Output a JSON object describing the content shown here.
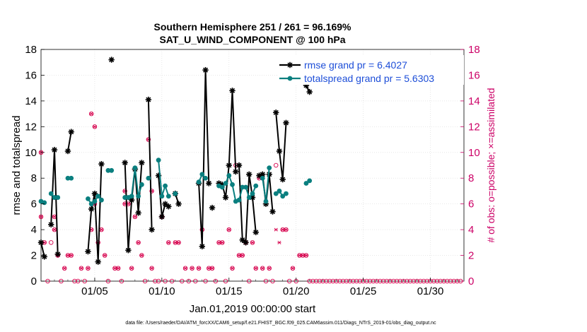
{
  "chart_data": {
    "type": "line",
    "title_line1": "Southern Hemisphere 251 / 261 = 96.169%",
    "title_line2": "SAT_U_WIND_COMPONENT @ 100 hPa",
    "xlabel": "Jan.01,2019 00:00:00 start",
    "ylabel_left": "rmse and totalspread",
    "ylabel_right": "# of obs: o=possible; ×=assimilated",
    "footer": "data file: /Users/raeder/DAI/ATM_forcXX/CAM6_setup/f.e21.FHIST_BGC.f09_025.CAM6assim.011/Diags_NTrS_2019-01/obs_diag_output.nc",
    "xlim": [
      1,
      32.5
    ],
    "ylim_left": [
      0,
      18
    ],
    "ylim_right": [
      0,
      18
    ],
    "x_ticks": [
      {
        "value": 5,
        "label": "01/05"
      },
      {
        "value": 10,
        "label": "01/10"
      },
      {
        "value": 15,
        "label": "01/15"
      },
      {
        "value": 20,
        "label": "01/20"
      },
      {
        "value": 25,
        "label": "01/25"
      },
      {
        "value": 30,
        "label": "01/30"
      }
    ],
    "y_ticks_left": [
      "0",
      "2",
      "4",
      "6",
      "8",
      "10",
      "12",
      "14",
      "16",
      "18"
    ],
    "y_ticks_right": [
      "0",
      "2",
      "4",
      "6",
      "8",
      "10",
      "12",
      "14",
      "16",
      "18"
    ],
    "grid": true,
    "legend_placement": "top-right",
    "colors": {
      "rmse": "#000000",
      "spread": "#0a7f7f",
      "obs": "#d6004c",
      "axis_right": "#cc0066",
      "legend_text": "#1d4ed8"
    },
    "series": [
      {
        "name": "rmse grand pr = 6.4027",
        "key": "rmse",
        "segments": [
          [
            [
              1.0,
              3.0
            ],
            [
              1.25,
              1.9
            ]
          ],
          [
            [
              1.75,
              4.4
            ],
            [
              2.0,
              10.2
            ],
            [
              2.25,
              2.1
            ]
          ],
          [
            [
              3.0,
              10.1
            ],
            [
              3.25,
              11.6
            ]
          ],
          [
            [
              4.5,
              2.3
            ],
            [
              4.75,
              5.6
            ],
            [
              5.0,
              6.8
            ],
            [
              5.25,
              1.5
            ],
            [
              5.5,
              9.1
            ]
          ],
          [
            [
              6.25,
              17.2
            ]
          ],
          [
            [
              7.25,
              9.2
            ],
            [
              7.5,
              2.4
            ],
            [
              7.75,
              6.3
            ],
            [
              8.0,
              8.7
            ],
            [
              8.25,
              5.3
            ],
            [
              8.5,
              9.2
            ]
          ],
          [
            [
              9.0,
              14.1
            ],
            [
              9.25,
              4.0
            ]
          ],
          [
            [
              9.75,
              8.2
            ],
            [
              10.0,
              5.0
            ],
            [
              10.25,
              6.0
            ],
            [
              10.5,
              5.8
            ]
          ],
          [
            [
              11.0,
              6.8
            ],
            [
              11.25,
              6.0
            ]
          ],
          [
            [
              12.75,
              7.6
            ],
            [
              13.0,
              2.7
            ],
            [
              13.25,
              16.4
            ],
            [
              13.5,
              7.6
            ]
          ],
          [
            [
              13.75,
              5.7
            ]
          ],
          [
            [
              14.25,
              7.6
            ],
            [
              14.5,
              7.5
            ],
            [
              14.75,
              6.5
            ],
            [
              15.0,
              9.0
            ],
            [
              15.25,
              14.8
            ],
            [
              15.5,
              8.5
            ]
          ],
          [
            [
              15.75,
              9.0
            ],
            [
              16.0,
              3.2
            ],
            [
              16.25,
              3.0
            ],
            [
              16.5,
              8.3
            ],
            [
              16.75,
              6.5
            ],
            [
              17.0,
              3.8
            ]
          ],
          [
            [
              17.25,
              8.2
            ],
            [
              17.5,
              8.3
            ],
            [
              17.75,
              6.0
            ],
            [
              18.0,
              8.3
            ],
            [
              18.25,
              5.4
            ]
          ],
          [
            [
              18.5,
              13.1
            ],
            [
              18.75,
              10.1
            ],
            [
              19.0,
              7.9
            ],
            [
              19.25,
              12.3
            ]
          ],
          [
            [
              20.75,
              15.2
            ],
            [
              21.0,
              14.7
            ]
          ]
        ]
      },
      {
        "name": "totalspread grand pr = 5.6303",
        "key": "spread",
        "segments": [
          [
            [
              1.0,
              6.2
            ],
            [
              1.25,
              6.1
            ]
          ],
          [
            [
              1.75,
              6.8
            ],
            [
              2.0,
              6.5
            ],
            [
              2.25,
              6.5
            ]
          ],
          [
            [
              3.0,
              8.0
            ],
            [
              3.25,
              8.0
            ]
          ],
          [
            [
              4.5,
              6.4
            ],
            [
              4.75,
              6.0
            ],
            [
              5.0,
              6.2
            ],
            [
              5.25,
              6.6
            ],
            [
              5.5,
              6.3
            ]
          ],
          [
            [
              6.0,
              8.6
            ],
            [
              6.25,
              8.6
            ]
          ],
          [
            [
              7.25,
              6.5
            ],
            [
              7.5,
              6.5
            ],
            [
              7.75,
              6.6
            ],
            [
              8.0,
              8.8
            ],
            [
              8.25,
              6.6
            ],
            [
              8.5,
              7.5
            ]
          ],
          [
            [
              9.0,
              8.0
            ]
          ],
          [
            [
              9.75,
              9.4
            ],
            [
              10.0,
              6.6
            ],
            [
              10.25,
              7.4
            ],
            [
              10.5,
              6.6
            ]
          ],
          [
            [
              11.0,
              6.8
            ]
          ],
          [
            [
              12.75,
              7.7
            ],
            [
              13.0,
              8.3
            ],
            [
              13.25,
              8.0
            ]
          ],
          [
            [
              14.25,
              7.4
            ],
            [
              14.5,
              7.3
            ],
            [
              14.75,
              7.6
            ],
            [
              15.0,
              8.2
            ],
            [
              15.25,
              7.5
            ],
            [
              15.5,
              6.2
            ]
          ],
          [
            [
              15.75,
              6.3
            ],
            [
              16.0,
              7.3
            ],
            [
              16.25,
              7.3
            ],
            [
              16.5,
              6.5
            ],
            [
              16.75,
              6.8
            ],
            [
              17.0,
              7.4
            ]
          ],
          [
            [
              17.5,
              8.0
            ],
            [
              17.75,
              6.2
            ],
            [
              18.0,
              8.8
            ]
          ],
          [
            [
              18.5,
              6.8
            ],
            [
              18.75,
              7.0
            ],
            [
              19.0,
              6.6
            ]
          ],
          [
            [
              19.25,
              6.8
            ]
          ],
          [
            [
              20.75,
              7.6
            ],
            [
              21.0,
              7.8
            ]
          ]
        ]
      }
    ],
    "obs_possible": [
      [
        1.0,
        10
      ],
      [
        1.0,
        5
      ],
      [
        1.25,
        3
      ],
      [
        1.5,
        0
      ],
      [
        1.75,
        3
      ],
      [
        2.0,
        5
      ],
      [
        2.0,
        4
      ],
      [
        2.25,
        2
      ],
      [
        2.5,
        0
      ],
      [
        2.75,
        1
      ],
      [
        3.0,
        2
      ],
      [
        3.25,
        2
      ],
      [
        3.5,
        0
      ],
      [
        3.75,
        0
      ],
      [
        4.0,
        1
      ],
      [
        4.25,
        0
      ],
      [
        4.5,
        1
      ],
      [
        4.75,
        4
      ],
      [
        4.75,
        13
      ],
      [
        5.0,
        12
      ],
      [
        5.0,
        6
      ],
      [
        5.25,
        3
      ],
      [
        5.5,
        4
      ],
      [
        5.75,
        2
      ],
      [
        6.0,
        0
      ],
      [
        6.5,
        1
      ],
      [
        6.75,
        1
      ],
      [
        7.0,
        0
      ],
      [
        7.25,
        6
      ],
      [
        7.25,
        7
      ],
      [
        7.5,
        6
      ],
      [
        7.75,
        1
      ],
      [
        8.0,
        5
      ],
      [
        8.25,
        3
      ],
      [
        8.5,
        2
      ],
      [
        8.75,
        0
      ],
      [
        9.0,
        11
      ],
      [
        9.25,
        7
      ],
      [
        9.25,
        1
      ],
      [
        9.5,
        0
      ],
      [
        9.75,
        0
      ],
      [
        10.0,
        5
      ],
      [
        10.25,
        0
      ],
      [
        10.5,
        3
      ],
      [
        10.75,
        0
      ],
      [
        11.0,
        3
      ],
      [
        11.25,
        3
      ],
      [
        11.5,
        0
      ],
      [
        11.75,
        1
      ],
      [
        12.0,
        0
      ],
      [
        12.25,
        1
      ],
      [
        12.5,
        0
      ],
      [
        12.75,
        1
      ],
      [
        13.0,
        4
      ],
      [
        13.25,
        0
      ],
      [
        13.5,
        1
      ],
      [
        13.75,
        1
      ],
      [
        14.0,
        0
      ],
      [
        14.25,
        3
      ],
      [
        14.5,
        3
      ],
      [
        14.75,
        0
      ],
      [
        15.0,
        4
      ],
      [
        15.25,
        1
      ],
      [
        15.5,
        9
      ],
      [
        15.75,
        2
      ],
      [
        16.0,
        2
      ],
      [
        16.25,
        3
      ],
      [
        16.5,
        0
      ],
      [
        16.75,
        3
      ],
      [
        17.0,
        1
      ],
      [
        17.25,
        8
      ],
      [
        17.5,
        1
      ],
      [
        17.75,
        0
      ],
      [
        18.0,
        1
      ],
      [
        18.25,
        0
      ],
      [
        18.5,
        9
      ],
      [
        18.75,
        7
      ],
      [
        19.0,
        4
      ],
      [
        19.25,
        4
      ],
      [
        19.5,
        0
      ],
      [
        19.75,
        1
      ],
      [
        20.0,
        0
      ],
      [
        20.25,
        2
      ],
      [
        20.5,
        2
      ],
      [
        20.75,
        2
      ],
      [
        21.0,
        0
      ],
      [
        21.25,
        0
      ],
      [
        21.5,
        0
      ],
      [
        21.75,
        0
      ],
      [
        22.0,
        0
      ],
      [
        22.25,
        0
      ],
      [
        22.5,
        0
      ],
      [
        22.75,
        0
      ],
      [
        23.0,
        0
      ],
      [
        23.25,
        0
      ],
      [
        23.5,
        0
      ],
      [
        23.75,
        0
      ],
      [
        24.0,
        0
      ],
      [
        24.25,
        0
      ],
      [
        24.5,
        0
      ],
      [
        24.75,
        0
      ],
      [
        25.0,
        0
      ],
      [
        25.25,
        0
      ],
      [
        25.5,
        0
      ],
      [
        25.75,
        0
      ],
      [
        26.0,
        0
      ],
      [
        26.25,
        0
      ],
      [
        26.5,
        0
      ],
      [
        26.75,
        0
      ],
      [
        27.0,
        0
      ],
      [
        27.25,
        0
      ],
      [
        27.5,
        0
      ],
      [
        27.75,
        0
      ],
      [
        28.0,
        0
      ],
      [
        28.25,
        0
      ],
      [
        28.5,
        0
      ],
      [
        28.75,
        0
      ],
      [
        29.0,
        0
      ],
      [
        29.25,
        0
      ],
      [
        29.5,
        0
      ],
      [
        29.75,
        0
      ],
      [
        30.0,
        0
      ],
      [
        30.25,
        0
      ],
      [
        30.5,
        0
      ],
      [
        30.75,
        0
      ],
      [
        31.0,
        0
      ],
      [
        31.25,
        0
      ],
      [
        31.5,
        0
      ],
      [
        31.75,
        0
      ],
      [
        32.0,
        0
      ],
      [
        32.25,
        0
      ]
    ],
    "obs_assimilated": [
      [
        1.0,
        10
      ],
      [
        1.0,
        5
      ],
      [
        1.25,
        3
      ],
      [
        2.0,
        5
      ],
      [
        2.0,
        4
      ],
      [
        2.25,
        2
      ],
      [
        2.75,
        1
      ],
      [
        3.0,
        2
      ],
      [
        3.25,
        2
      ],
      [
        4.0,
        1
      ],
      [
        4.5,
        1
      ],
      [
        4.75,
        4
      ],
      [
        4.75,
        13
      ],
      [
        5.0,
        12
      ],
      [
        5.0,
        6
      ],
      [
        5.25,
        3
      ],
      [
        5.5,
        4
      ],
      [
        5.75,
        2
      ],
      [
        6.5,
        1
      ],
      [
        6.75,
        1
      ],
      [
        7.25,
        6
      ],
      [
        7.25,
        7
      ],
      [
        7.5,
        6
      ],
      [
        7.75,
        1
      ],
      [
        8.0,
        5
      ],
      [
        8.25,
        3
      ],
      [
        8.5,
        2
      ],
      [
        9.0,
        11
      ],
      [
        9.25,
        7
      ],
      [
        9.25,
        1
      ],
      [
        10.0,
        5
      ],
      [
        10.5,
        3
      ],
      [
        11.0,
        3
      ],
      [
        11.25,
        3
      ],
      [
        11.75,
        1
      ],
      [
        12.25,
        1
      ],
      [
        12.75,
        1
      ],
      [
        13.0,
        4
      ],
      [
        13.5,
        1
      ],
      [
        13.75,
        1
      ],
      [
        14.25,
        3
      ],
      [
        14.5,
        3
      ],
      [
        15.0,
        4
      ],
      [
        15.25,
        1
      ],
      [
        15.75,
        2
      ],
      [
        16.0,
        2
      ],
      [
        16.25,
        3
      ],
      [
        16.75,
        3
      ],
      [
        17.0,
        1
      ],
      [
        17.25,
        8
      ],
      [
        17.5,
        1
      ],
      [
        18.0,
        1
      ],
      [
        18.5,
        4
      ],
      [
        18.75,
        3
      ],
      [
        18.75,
        7
      ],
      [
        19.0,
        4
      ],
      [
        19.25,
        4
      ],
      [
        19.75,
        1
      ],
      [
        20.25,
        2
      ],
      [
        20.5,
        2
      ],
      [
        20.75,
        2
      ]
    ]
  }
}
